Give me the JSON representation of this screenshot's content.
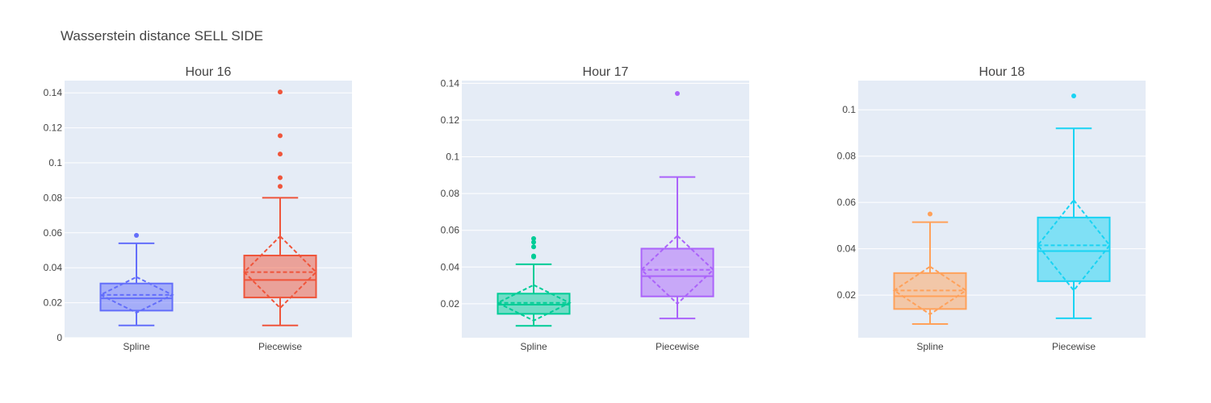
{
  "title": "Wasserstein distance SELL SIDE",
  "colors": {
    "plot_bg": "#e5ecf6",
    "grid": "#ffffff",
    "text": "#444444"
  },
  "chart_data": [
    {
      "type": "box",
      "title": "Hour 16",
      "ylim": [
        0,
        0.147
      ],
      "yticks": [
        0,
        0.02,
        0.04,
        0.06,
        0.08,
        0.1,
        0.12,
        0.14
      ],
      "ytick_labels": [
        "0",
        "0.02",
        "0.04",
        "0.06",
        "0.08",
        "0.1",
        "0.12",
        "0.14"
      ],
      "grid": true,
      "categories": [
        "Spline",
        "Piecewise"
      ],
      "boxes": [
        {
          "category": "Spline",
          "color": "#636efa",
          "q1": 0.0155,
          "median": 0.0225,
          "q3": 0.031,
          "whisker_low": 0.007,
          "whisker_high": 0.054,
          "mean": 0.0245,
          "sd": 0.0102,
          "outliers": [
            0.0585
          ]
        },
        {
          "category": "Piecewise",
          "color": "#ef553b",
          "q1": 0.023,
          "median": 0.033,
          "q3": 0.047,
          "whisker_low": 0.007,
          "whisker_high": 0.08,
          "mean": 0.0375,
          "sd": 0.0205,
          "outliers": [
            0.0865,
            0.0915,
            0.105,
            0.1155,
            0.1405
          ]
        }
      ]
    },
    {
      "type": "box",
      "title": "Hour 17",
      "ylim": [
        0.0015,
        0.1415
      ],
      "yticks": [
        0.02,
        0.04,
        0.06,
        0.08,
        0.1,
        0.12,
        0.14
      ],
      "ytick_labels": [
        "0.02",
        "0.04",
        "0.06",
        "0.08",
        "0.1",
        "0.12",
        "0.14"
      ],
      "grid": true,
      "categories": [
        "Spline",
        "Piecewise"
      ],
      "boxes": [
        {
          "category": "Spline",
          "color": "#00cc96",
          "q1": 0.0145,
          "median": 0.0195,
          "q3": 0.0255,
          "whisker_low": 0.008,
          "whisker_high": 0.0415,
          "mean": 0.0205,
          "sd": 0.0097,
          "outliers": [
            0.0455,
            0.046,
            0.051,
            0.0535,
            0.0555
          ]
        },
        {
          "category": "Piecewise",
          "color": "#ab63fa",
          "q1": 0.024,
          "median": 0.035,
          "q3": 0.05,
          "whisker_low": 0.012,
          "whisker_high": 0.089,
          "mean": 0.0385,
          "sd": 0.0185,
          "outliers": [
            0.1345
          ]
        }
      ]
    },
    {
      "type": "box",
      "title": "Hour 18",
      "ylim": [
        0.0016,
        0.1126
      ],
      "yticks": [
        0.02,
        0.04,
        0.06,
        0.08,
        0.1
      ],
      "ytick_labels": [
        "0.02",
        "0.04",
        "0.06",
        "0.08",
        "0.1"
      ],
      "grid": true,
      "categories": [
        "Spline",
        "Piecewise"
      ],
      "boxes": [
        {
          "category": "Spline",
          "color": "#ffa15a",
          "q1": 0.014,
          "median": 0.0195,
          "q3": 0.0295,
          "whisker_low": 0.0075,
          "whisker_high": 0.0515,
          "mean": 0.022,
          "sd": 0.0103,
          "outliers": [
            0.055
          ]
        },
        {
          "category": "Piecewise",
          "color": "#19d3f3",
          "q1": 0.026,
          "median": 0.039,
          "q3": 0.0535,
          "whisker_low": 0.01,
          "whisker_high": 0.092,
          "mean": 0.0415,
          "sd": 0.0195,
          "outliers": [
            0.106
          ]
        }
      ]
    }
  ]
}
